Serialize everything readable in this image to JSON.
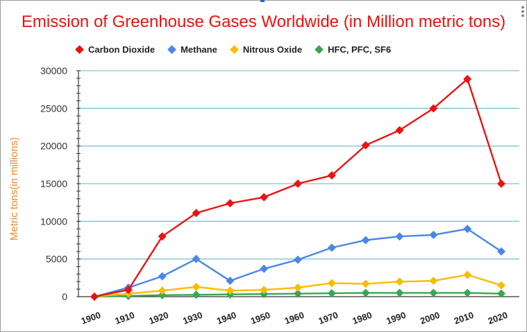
{
  "chart_data": {
    "type": "line",
    "title": "Emission of Greenhouse Gases Worldwide (in Million metric tons)",
    "xlabel": "",
    "ylabel": "Metric tons(in millions)",
    "categories": [
      "1900",
      "1910",
      "1920",
      "1930",
      "1940",
      "1950",
      "1960",
      "1970",
      "1980",
      "1990",
      "2000",
      "2010",
      "2020"
    ],
    "ylim": [
      0,
      30000
    ],
    "yticks": [
      0,
      5000,
      10000,
      15000,
      20000,
      25000,
      30000
    ],
    "grid": true,
    "legend_position": "top",
    "series": [
      {
        "name": "Carbon Dioxide",
        "color": "#ee1111",
        "values": [
          0,
          900,
          8000,
          11100,
          12400,
          13200,
          15000,
          16100,
          20100,
          22100,
          25000,
          28900,
          15000
        ]
      },
      {
        "name": "Methane",
        "color": "#4a86e8",
        "values": [
          0,
          1200,
          2700,
          5000,
          2100,
          3700,
          4900,
          6500,
          7500,
          8000,
          8200,
          9000,
          6000
        ]
      },
      {
        "name": "Nitrous Oxide",
        "color": "#fbbc04",
        "values": [
          0,
          400,
          800,
          1300,
          800,
          900,
          1200,
          1800,
          1700,
          2000,
          2100,
          2900,
          1500
        ]
      },
      {
        "name": "HFC, PFC, SF6",
        "color": "#34a853",
        "values": [
          0,
          100,
          200,
          250,
          300,
          350,
          400,
          450,
          500,
          500,
          500,
          500,
          400
        ]
      }
    ]
  }
}
